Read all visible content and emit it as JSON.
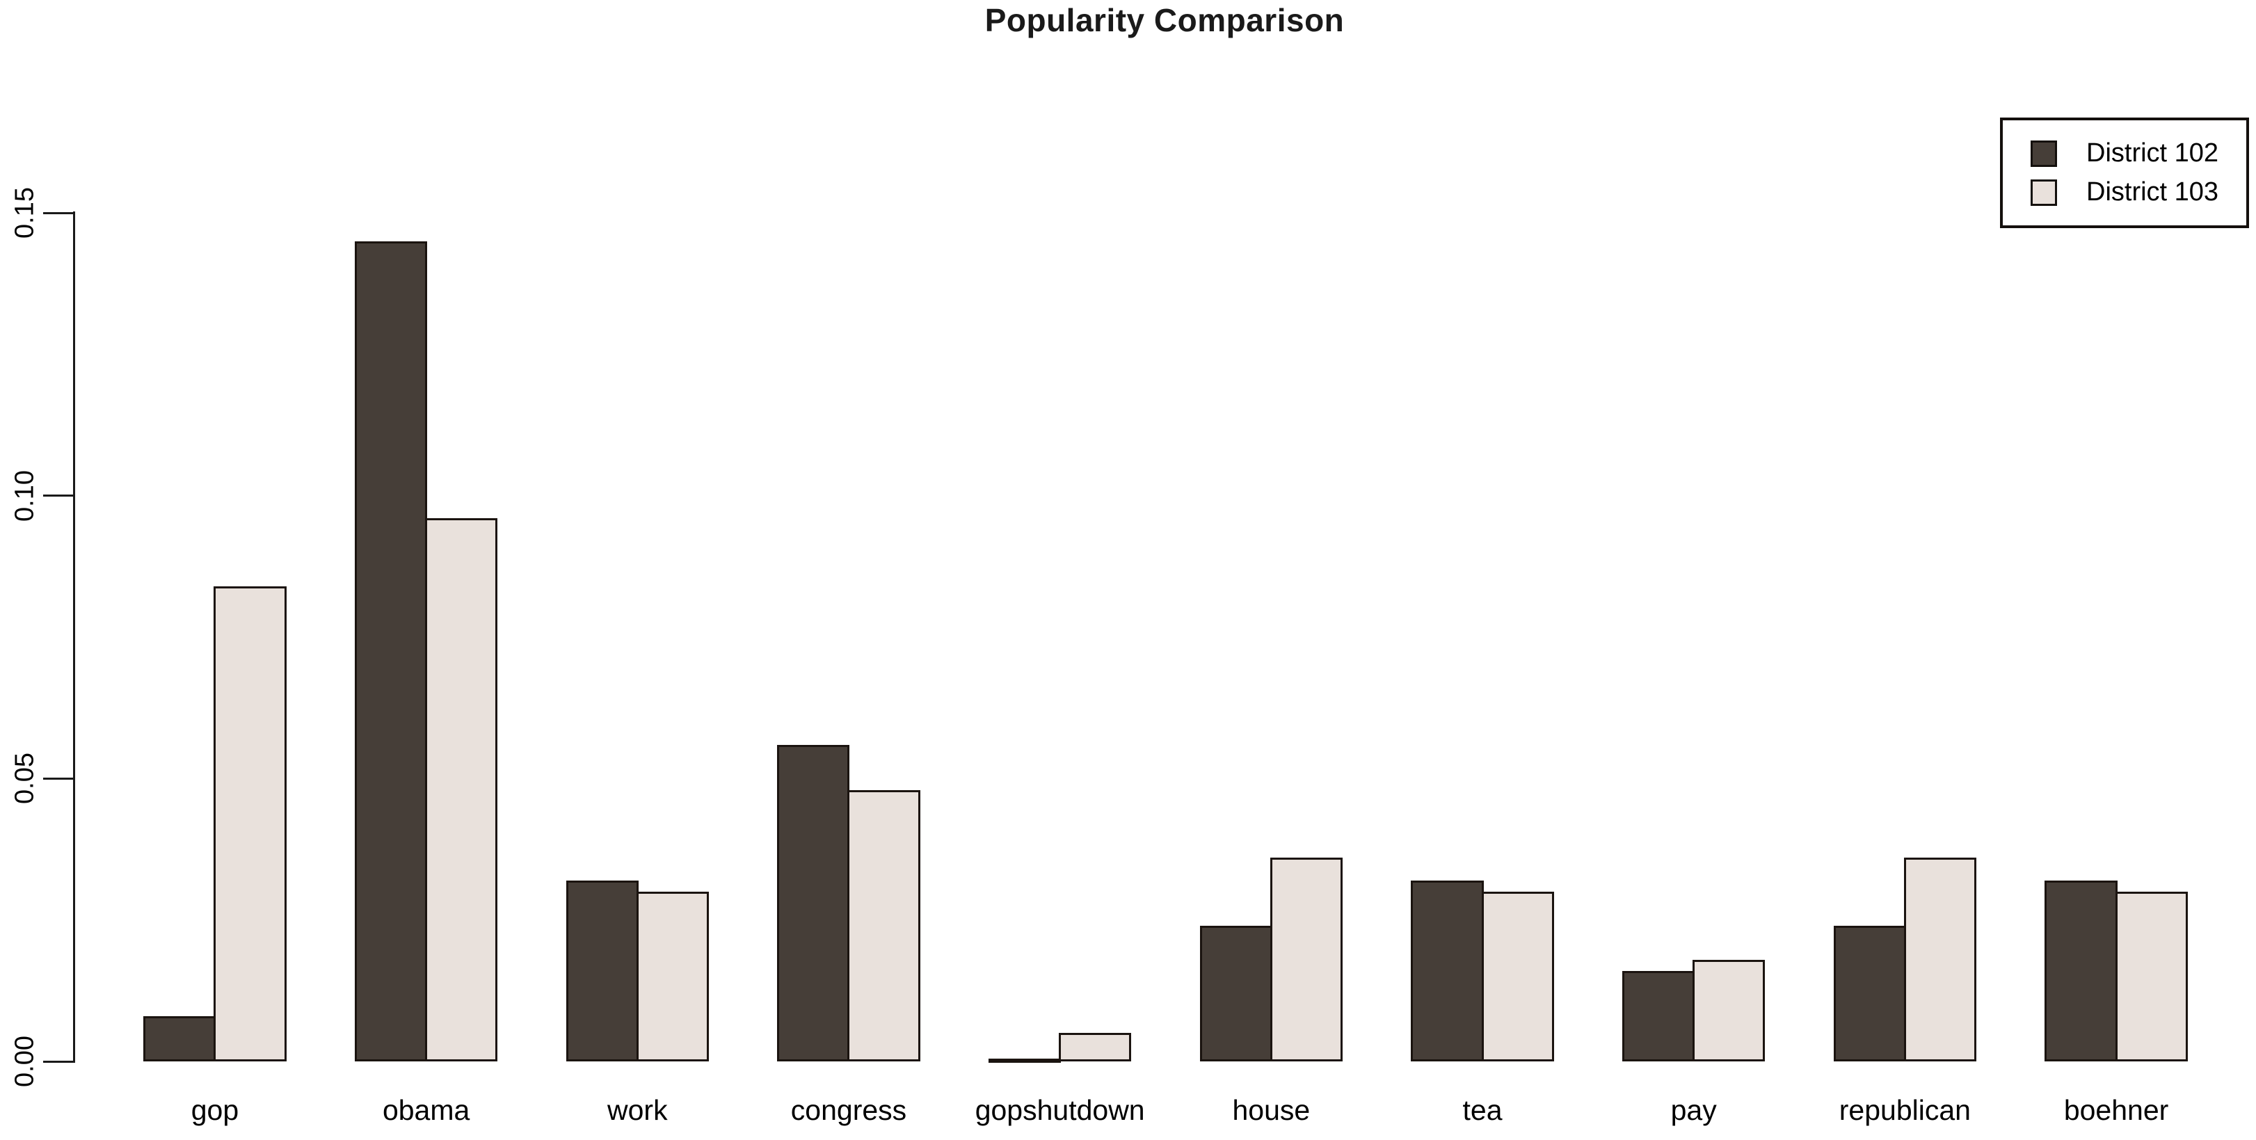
{
  "title": "Popularity Comparison",
  "legend": {
    "items": [
      {
        "label": "District 102",
        "color": "#463e38"
      },
      {
        "label": "District 103",
        "color": "#e9e1dc"
      }
    ]
  },
  "colors": {
    "background": "#ffffff",
    "bar_border": "#1b1410",
    "axis": "#1a1a1a",
    "text": "#000000",
    "series_dark": "#463e38",
    "series_light": "#e9e1dc"
  },
  "chart_data": {
    "type": "bar",
    "title": "Popularity Comparison",
    "categories": [
      "gop",
      "obama",
      "work",
      "congress",
      "gopshutdown",
      "house",
      "tea",
      "pay",
      "republican",
      "boehner"
    ],
    "series": [
      {
        "name": "District 102",
        "color": "#463e38",
        "values": [
          0.008,
          0.145,
          0.032,
          0.056,
          0.0003,
          0.024,
          0.032,
          0.016,
          0.024,
          0.032
        ]
      },
      {
        "name": "District 103",
        "color": "#e9e1dc",
        "values": [
          0.084,
          0.096,
          0.03,
          0.048,
          0.005,
          0.036,
          0.03,
          0.018,
          0.036,
          0.03
        ]
      }
    ],
    "xlabel": "",
    "ylabel": "",
    "ylim": [
      0,
      0.15
    ],
    "yticks": [
      0.0,
      0.05,
      0.1,
      0.15
    ],
    "ytick_labels": [
      "0.00",
      "0.05",
      "0.10",
      "0.15"
    ],
    "grid": false,
    "legend_position": "top-right",
    "bar_layout": "grouped-beside"
  }
}
